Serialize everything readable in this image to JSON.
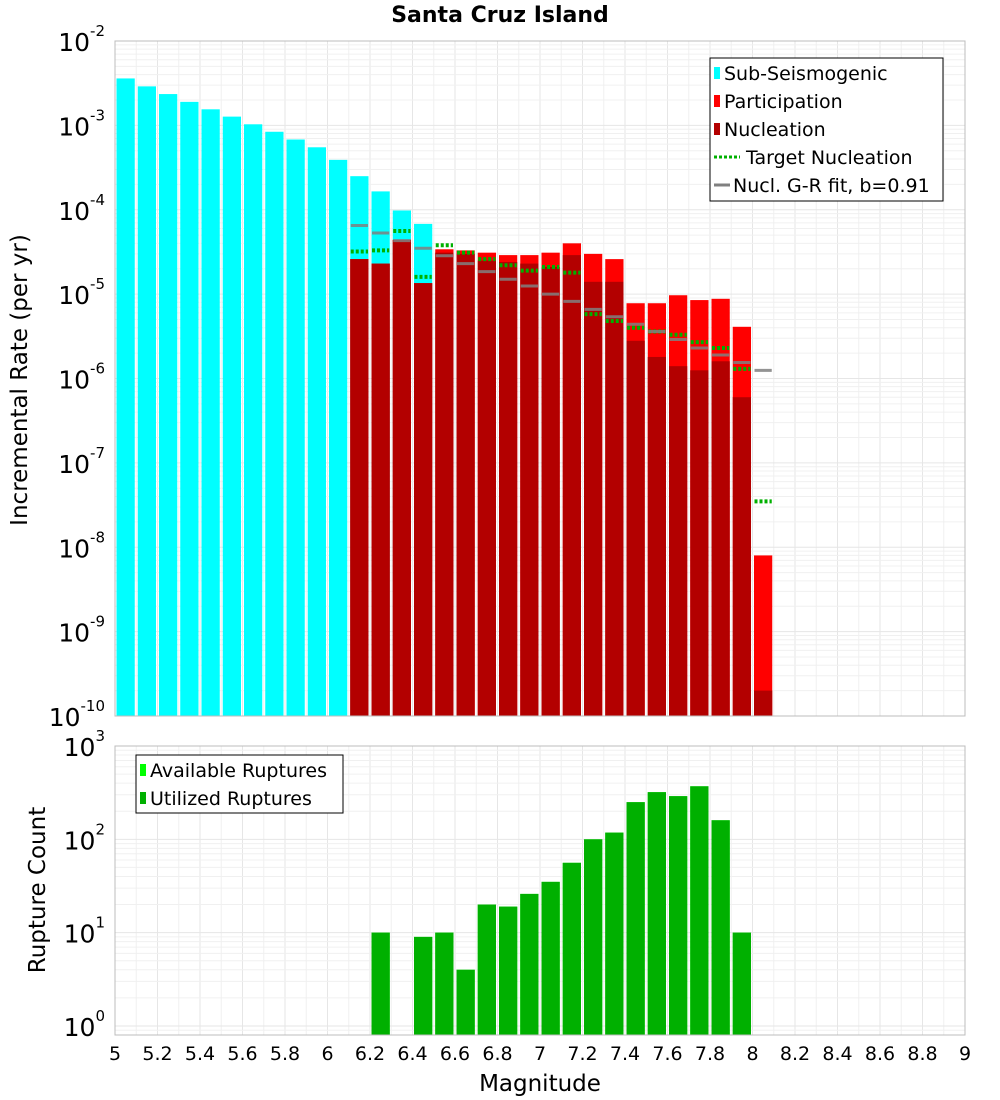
{
  "title": "Santa Cruz Island",
  "chart_data": [
    {
      "type": "bar",
      "title": "Santa Cruz Island",
      "xlabel": "Magnitude",
      "ylabel": "Incremental Rate (per yr)",
      "yscale": "log",
      "ylim": [
        1e-10,
        0.01
      ],
      "xlim": [
        5,
        9
      ],
      "bin_width": 0.1,
      "y_ticks": [
        {
          "base": "10",
          "exp": "-2"
        },
        {
          "base": "10",
          "exp": "-3"
        },
        {
          "base": "10",
          "exp": "-4"
        },
        {
          "base": "10",
          "exp": "-5"
        },
        {
          "base": "10",
          "exp": "-6"
        },
        {
          "base": "10",
          "exp": "-7"
        },
        {
          "base": "10",
          "exp": "-8"
        },
        {
          "base": "10",
          "exp": "-9"
        },
        {
          "base": "10",
          "exp": "-10"
        }
      ],
      "legend_position": "top-right",
      "legend": [
        {
          "label": "Sub-Seismogenic",
          "color": "#00ffff",
          "style": "bar"
        },
        {
          "label": "Participation",
          "color": "#ff0000",
          "style": "bar"
        },
        {
          "label": "Nucleation",
          "color": "#b30000",
          "style": "bar"
        },
        {
          "label": "Target Nucleation",
          "color": "#00b000",
          "style": "dotted"
        },
        {
          "label": "Nucl. G-R fit, b=0.91",
          "color": "#808080",
          "style": "line"
        }
      ],
      "series": [
        {
          "name": "Sub-Seismogenic",
          "color": "#00ffff",
          "x": [
            5.05,
            5.15,
            5.25,
            5.35,
            5.45,
            5.55,
            5.65,
            5.75,
            5.85,
            5.95,
            6.05,
            6.15,
            6.25,
            6.35,
            6.45
          ],
          "values": [
            0.0036,
            0.0029,
            0.00235,
            0.0019,
            0.00155,
            0.00127,
            0.00103,
            0.00084,
            0.00068,
            0.00055,
            0.00039,
            0.00025,
            0.000165,
            9.8e-05,
            6.8e-05
          ]
        },
        {
          "name": "Participation",
          "color": "#ff0000",
          "x": [
            6.15,
            6.25,
            6.35,
            6.45,
            6.55,
            6.65,
            6.75,
            6.85,
            6.95,
            7.05,
            7.15,
            7.25,
            7.35,
            7.45,
            7.55,
            7.65,
            7.75,
            7.85,
            7.95,
            8.05
          ],
          "values": [
            2.6e-05,
            2.3e-05,
            4.4e-05,
            1.35e-05,
            3.4e-05,
            3.3e-05,
            3.1e-05,
            2.9e-05,
            2.9e-05,
            3.1e-05,
            4e-05,
            3e-05,
            2.6e-05,
            7.8e-06,
            7.8e-06,
            9.7e-06,
            8.5e-06,
            8.8e-06,
            4.1e-06,
            8e-09
          ]
        },
        {
          "name": "Nucleation",
          "color": "#b30000",
          "x": [
            6.15,
            6.25,
            6.35,
            6.45,
            6.55,
            6.65,
            6.75,
            6.85,
            6.95,
            7.05,
            7.15,
            7.25,
            7.35,
            7.45,
            7.55,
            7.65,
            7.75,
            7.85,
            7.95,
            8.05
          ],
          "values": [
            2.6e-05,
            2.3e-05,
            4.4e-05,
            1.35e-05,
            3.1e-05,
            3e-05,
            2.5e-05,
            2.4e-05,
            2.3e-05,
            2.1e-05,
            2.9e-05,
            1.4e-05,
            1.4e-05,
            2.8e-06,
            1.8e-06,
            1.4e-06,
            1.25e-06,
            1.6e-06,
            6e-07,
            2e-10
          ]
        },
        {
          "name": "Target Nucleation",
          "color": "#00b000",
          "style": "dotted",
          "x": [
            6.15,
            6.25,
            6.35,
            6.45,
            6.55,
            6.65,
            6.75,
            6.85,
            6.95,
            7.05,
            7.15,
            7.25,
            7.35,
            7.45,
            7.55,
            7.65,
            7.75,
            7.85,
            7.95,
            8.05
          ],
          "values": [
            3.2e-05,
            3.3e-05,
            5.6e-05,
            1.6e-05,
            3.8e-05,
            3.1e-05,
            2.6e-05,
            2.2e-05,
            1.9e-05,
            2.1e-05,
            1.8e-05,
            5.8e-06,
            4.8e-06,
            4e-06,
            3.6e-06,
            3.3e-06,
            2.7e-06,
            2.3e-06,
            1.3e-06,
            3.5e-08
          ]
        },
        {
          "name": "Nucl. G-R fit, b=0.91",
          "color": "#808080",
          "style": "line",
          "x": [
            6.15,
            6.25,
            6.35,
            6.45,
            6.55,
            6.65,
            6.75,
            6.85,
            6.95,
            7.05,
            7.15,
            7.25,
            7.35,
            7.45,
            7.55,
            7.65,
            7.75,
            7.85,
            7.95,
            8.05
          ],
          "values": [
            6.5e-05,
            5.3e-05,
            4.3e-05,
            3.5e-05,
            2.85e-05,
            2.3e-05,
            1.85e-05,
            1.5e-05,
            1.25e-05,
            1e-05,
            8.2e-06,
            6.6e-06,
            5.4e-06,
            4.4e-06,
            3.6e-06,
            2.9e-06,
            2.3e-06,
            1.9e-06,
            1.55e-06,
            1.25e-06
          ]
        }
      ]
    },
    {
      "type": "bar",
      "xlabel": "Magnitude",
      "ylabel": "Rupture Count",
      "yscale": "log",
      "ylim": [
        0.8,
        1000
      ],
      "xlim": [
        5,
        9
      ],
      "bin_width": 0.1,
      "y_ticks": [
        {
          "base": "10",
          "exp": "3"
        },
        {
          "base": "10",
          "exp": "2"
        },
        {
          "base": "10",
          "exp": "1"
        },
        {
          "base": "10",
          "exp": "0"
        }
      ],
      "x_ticks": [
        "5",
        "5.2",
        "5.4",
        "5.6",
        "5.8",
        "6",
        "6.2",
        "6.4",
        "6.6",
        "6.8",
        "7",
        "7.2",
        "7.4",
        "7.6",
        "7.8",
        "8",
        "8.2",
        "8.4",
        "8.6",
        "8.8",
        "9"
      ],
      "legend_position": "top-left",
      "legend": [
        {
          "label": "Available Ruptures",
          "color": "#00ff00"
        },
        {
          "label": "Utilized Ruptures",
          "color": "#00b000"
        }
      ],
      "series": [
        {
          "name": "Available Ruptures",
          "color": "#00ff00",
          "x": [
            6.25,
            6.45,
            6.55,
            6.65,
            6.75,
            6.85,
            6.95,
            7.05,
            7.15,
            7.25,
            7.35,
            7.45,
            7.55,
            7.65,
            7.75,
            7.85,
            7.95
          ],
          "values": [
            10,
            9,
            10,
            4,
            20,
            19,
            26,
            35,
            56,
            100,
            118,
            250,
            320,
            290,
            370,
            160,
            10
          ]
        },
        {
          "name": "Utilized Ruptures",
          "color": "#00b000",
          "x": [
            6.25,
            6.45,
            6.55,
            6.65,
            6.75,
            6.85,
            6.95,
            7.05,
            7.15,
            7.25,
            7.35,
            7.45,
            7.55,
            7.65,
            7.75,
            7.85,
            7.95
          ],
          "values": [
            10,
            9,
            10,
            4,
            20,
            19,
            26,
            35,
            56,
            100,
            118,
            250,
            320,
            290,
            370,
            160,
            10
          ]
        }
      ]
    }
  ]
}
